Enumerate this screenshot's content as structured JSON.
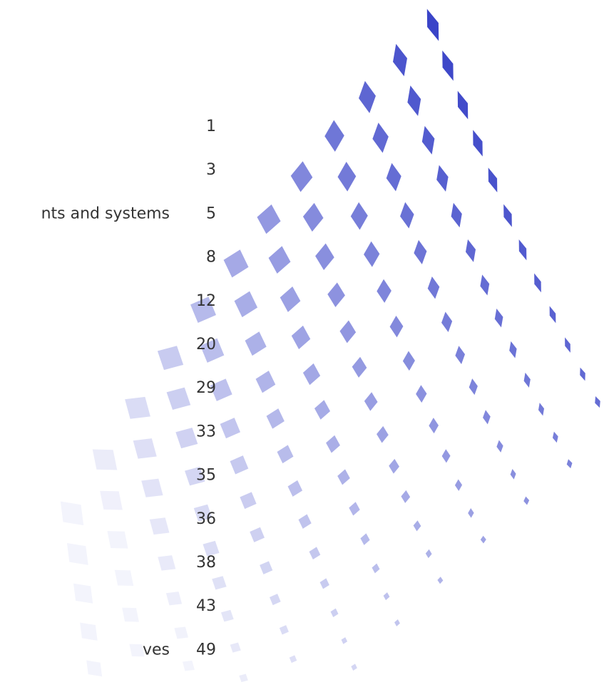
{
  "toc": {
    "entries": [
      {
        "page": 1
      },
      {
        "page": 3
      },
      {
        "title": "nts and systems",
        "page": 5
      },
      {
        "page": 8
      },
      {
        "page": 12
      },
      {
        "page": 20
      },
      {
        "page": 29
      },
      {
        "page": 33
      },
      {
        "page": 35
      },
      {
        "page": 36
      },
      {
        "page": 38
      },
      {
        "page": 43
      },
      {
        "title": "ves",
        "page": 49
      }
    ]
  }
}
